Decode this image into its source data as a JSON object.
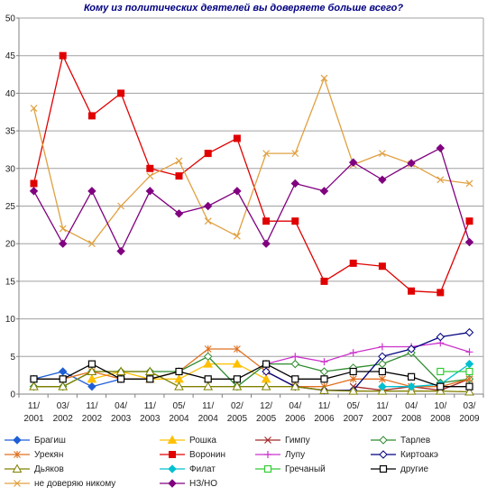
{
  "chart_data": {
    "type": "line",
    "title": "Кому из политических деятелей вы доверяете больше всего?",
    "xlabel": "",
    "ylabel": "",
    "ylim": [
      0,
      50
    ],
    "yticks": [
      0,
      5,
      10,
      15,
      20,
      25,
      30,
      35,
      40,
      45,
      50
    ],
    "grid": "horizontal",
    "legend_position": "bottom",
    "categories": [
      "11/2001",
      "03/2002",
      "11/2002",
      "04/2003",
      "11/2003",
      "05/2004",
      "11/2004",
      "02/2005",
      "12/2005",
      "04/2006",
      "11/2006",
      "05/2007",
      "11/2007",
      "04/2008",
      "10/2008",
      "03/2009"
    ],
    "category_labels": [
      [
        "11/",
        "2001"
      ],
      [
        "03/",
        "2002"
      ],
      [
        "11/",
        "2002"
      ],
      [
        "04/",
        "2003"
      ],
      [
        "11/",
        "2003"
      ],
      [
        "05/",
        "2004"
      ],
      [
        "11/",
        "2004"
      ],
      [
        "02/",
        "2005"
      ],
      [
        "12/",
        "2005"
      ],
      [
        "04/",
        "2006"
      ],
      [
        "11/",
        "2006"
      ],
      [
        "05/",
        "2007"
      ],
      [
        "11/",
        "2007"
      ],
      [
        "04/",
        "2008"
      ],
      [
        "10/",
        "2008"
      ],
      [
        "03/",
        "2009"
      ]
    ],
    "series": [
      {
        "name": "Брагиш",
        "color": "#1f5fd6",
        "marker": "diamond-filled",
        "values": [
          2,
          3,
          1,
          2,
          null,
          null,
          null,
          null,
          null,
          null,
          null,
          null,
          null,
          null,
          null,
          null
        ]
      },
      {
        "name": "Рошка",
        "color": "#ffc000",
        "marker": "triangle-filled",
        "values": [
          null,
          null,
          2,
          3,
          2,
          2,
          4,
          4,
          2,
          null,
          null,
          null,
          null,
          null,
          null,
          null
        ]
      },
      {
        "name": "Гимпу",
        "color": "#a52a2a",
        "marker": "x",
        "values": [
          null,
          null,
          null,
          null,
          null,
          null,
          null,
          null,
          null,
          null,
          null,
          1,
          0.5,
          1,
          0.5,
          2
        ]
      },
      {
        "name": "Тарлев",
        "color": "#2e8b2e",
        "marker": "diamond-open",
        "values": [
          1,
          1,
          3,
          3,
          3,
          3,
          5,
          1,
          4,
          4,
          3,
          3.5,
          4,
          5.5,
          1.5,
          2
        ]
      },
      {
        "name": "Урекян",
        "color": "#e07020",
        "marker": "star",
        "values": [
          2,
          2,
          3,
          2,
          2,
          3,
          6,
          6,
          3,
          1,
          1,
          2,
          2,
          1,
          1,
          2
        ]
      },
      {
        "name": "Воронин",
        "color": "#e00000",
        "marker": "square-filled",
        "values": [
          28,
          45,
          37,
          40,
          30,
          29,
          32,
          34,
          23,
          23,
          15,
          17.4,
          17,
          13.7,
          13.5,
          23
        ]
      },
      {
        "name": "Лупу",
        "color": "#cc33cc",
        "marker": "plus",
        "values": [
          null,
          null,
          null,
          null,
          null,
          null,
          null,
          null,
          4,
          5,
          4.3,
          5.5,
          6.3,
          6.3,
          6.8,
          5.6
        ]
      },
      {
        "name": "Киртоакэ",
        "color": "#000080",
        "marker": "diamond-open",
        "values": [
          null,
          null,
          null,
          null,
          null,
          null,
          null,
          null,
          3,
          1,
          0.5,
          0.5,
          5,
          6,
          7.6,
          8.2
        ]
      },
      {
        "name": "Дьяков",
        "color": "#808000",
        "marker": "triangle-open",
        "values": [
          1,
          1,
          3,
          3,
          3,
          1,
          1,
          1,
          1,
          1,
          0.5,
          0.4,
          0.4,
          0.4,
          0.4,
          0.3
        ]
      },
      {
        "name": "Филат",
        "color": "#00c0d0",
        "marker": "diamond-filled",
        "values": [
          null,
          null,
          null,
          null,
          null,
          null,
          null,
          null,
          null,
          null,
          null,
          null,
          1,
          1,
          1.3,
          4
        ]
      },
      {
        "name": "Гречаный",
        "color": "#33cc33",
        "marker": "square-open",
        "values": [
          null,
          null,
          null,
          null,
          null,
          null,
          null,
          null,
          null,
          null,
          null,
          null,
          null,
          null,
          3,
          3
        ]
      },
      {
        "name": "другие",
        "color": "#000000",
        "marker": "square-open",
        "values": [
          2,
          2,
          4,
          2,
          2,
          3,
          2,
          2,
          4,
          2,
          2,
          3,
          3,
          2.3,
          1,
          1
        ]
      },
      {
        "name": "не доверяю никому",
        "color": "#e0a040",
        "marker": "x",
        "values": [
          38,
          22,
          20,
          25,
          29,
          31,
          23,
          21,
          32,
          32,
          42,
          30.5,
          32,
          30.6,
          28.5,
          28
        ]
      },
      {
        "name": "НЗ/НО",
        "color": "#800080",
        "marker": "diamond-filled",
        "values": [
          27,
          20,
          27,
          19,
          27,
          24,
          25,
          27,
          20,
          28,
          27,
          30.8,
          28.5,
          30.7,
          32.7,
          20.2
        ]
      }
    ]
  }
}
